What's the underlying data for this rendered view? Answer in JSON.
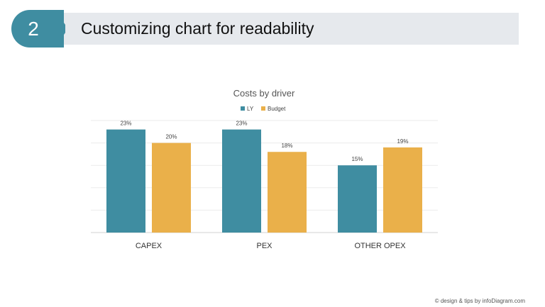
{
  "header": {
    "step_number": "2",
    "title": "Customizing chart for readability"
  },
  "footer": {
    "credit": "© design & tips by infoDiagram.com"
  },
  "colors": {
    "accent": "#3f8da1",
    "ly": "#3f8da1",
    "budget": "#eab04a",
    "header_bg": "#e6e9ed"
  },
  "chart_data": {
    "type": "bar",
    "title": "Costs by driver",
    "categories": [
      "CAPEX",
      "PEX",
      "OTHER OPEX"
    ],
    "series": [
      {
        "name": "LY",
        "values": [
          23,
          23,
          15
        ],
        "labels": [
          "23%",
          "23%",
          "15%"
        ],
        "color": "#3f8da1"
      },
      {
        "name": "Budget",
        "values": [
          20,
          18,
          19
        ],
        "labels": [
          "20%",
          "18%",
          "19%"
        ],
        "color": "#eab04a"
      }
    ],
    "ylim": [
      0,
      25
    ],
    "y_gridlines": [
      0,
      5,
      10,
      15,
      20,
      25
    ],
    "grid": true,
    "y_axis_labels_visible": false,
    "legend_position": "top"
  }
}
